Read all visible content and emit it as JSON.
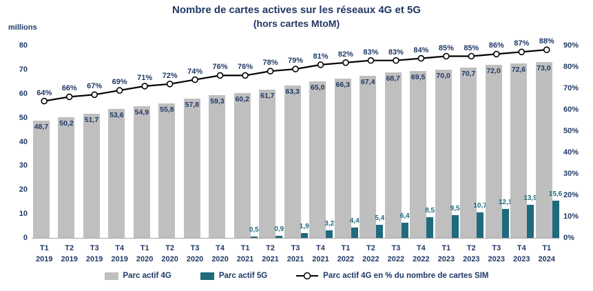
{
  "title": "Nombre de cartes actives sur les réseaux 4G et 5G",
  "subtitle": "(hors cartes MtoM)",
  "left_axis": {
    "label": "millions",
    "ticks": [
      0,
      10,
      20,
      30,
      40,
      50,
      60,
      70,
      80
    ]
  },
  "right_axis": {
    "ticks": [
      0,
      10,
      20,
      30,
      40,
      50,
      60,
      70,
      80,
      90
    ]
  },
  "colors": {
    "navy_text": "#1F3864",
    "bar_4g": "#BFBFBF",
    "bar_5g": "#1F6A7D",
    "line": "#000000",
    "marker_fill": "#FFFFFF",
    "axis_line": "#A6A6A6"
  },
  "legend": [
    {
      "label": "Parc actif 4G",
      "swatch": "bar_4g"
    },
    {
      "label": "Parc actif 5G",
      "swatch": "bar_5g"
    },
    {
      "label": "Parc actif 4G en % du nombre de cartes SIM",
      "swatch": "line"
    }
  ],
  "chart_data": {
    "type": "bar",
    "title": "Nombre de cartes actives sur les réseaux 4G et 5G (hors cartes MtoM)",
    "ylabel": "millions",
    "ylim_left": [
      0,
      80
    ],
    "ylim_right_percent": [
      0,
      90
    ],
    "grid": false,
    "legend_position": "bottom",
    "categories": [
      "T1 2019",
      "T2 2019",
      "T3 2019",
      "T4 2019",
      "T1 2020",
      "T2 2020",
      "T3 2020",
      "T4 2020",
      "T1 2021",
      "T2 2021",
      "T3 2021",
      "T4 2021",
      "T1 2022",
      "T2 2022",
      "T3 2022",
      "T4 2022",
      "T1 2023",
      "T2 2023",
      "T3 2023",
      "T4 2023",
      "T1 2024"
    ],
    "series": [
      {
        "name": "Parc actif 4G",
        "type": "bar",
        "axis": "left",
        "values": [
          48.7,
          50.2,
          51.7,
          53.6,
          54.9,
          55.8,
          57.8,
          59.3,
          60.2,
          61.7,
          63.3,
          65.0,
          66.3,
          67.4,
          68.7,
          69.5,
          70.0,
          70.7,
          72.0,
          72.6,
          73.0
        ]
      },
      {
        "name": "Parc actif 5G",
        "type": "bar",
        "axis": "left",
        "values": [
          null,
          null,
          null,
          null,
          null,
          null,
          null,
          null,
          0.5,
          0.9,
          1.9,
          3.2,
          4.4,
          5.4,
          6.4,
          8.5,
          9.5,
          10.7,
          12.1,
          13.9,
          15.6
        ]
      },
      {
        "name": "Parc actif 4G en % du nombre de cartes SIM",
        "type": "line",
        "axis": "right",
        "values": [
          64,
          66,
          67,
          69,
          71,
          72,
          74,
          76,
          76,
          78,
          79,
          81,
          82,
          83,
          83,
          84,
          85,
          85,
          86,
          87,
          88
        ]
      }
    ]
  }
}
